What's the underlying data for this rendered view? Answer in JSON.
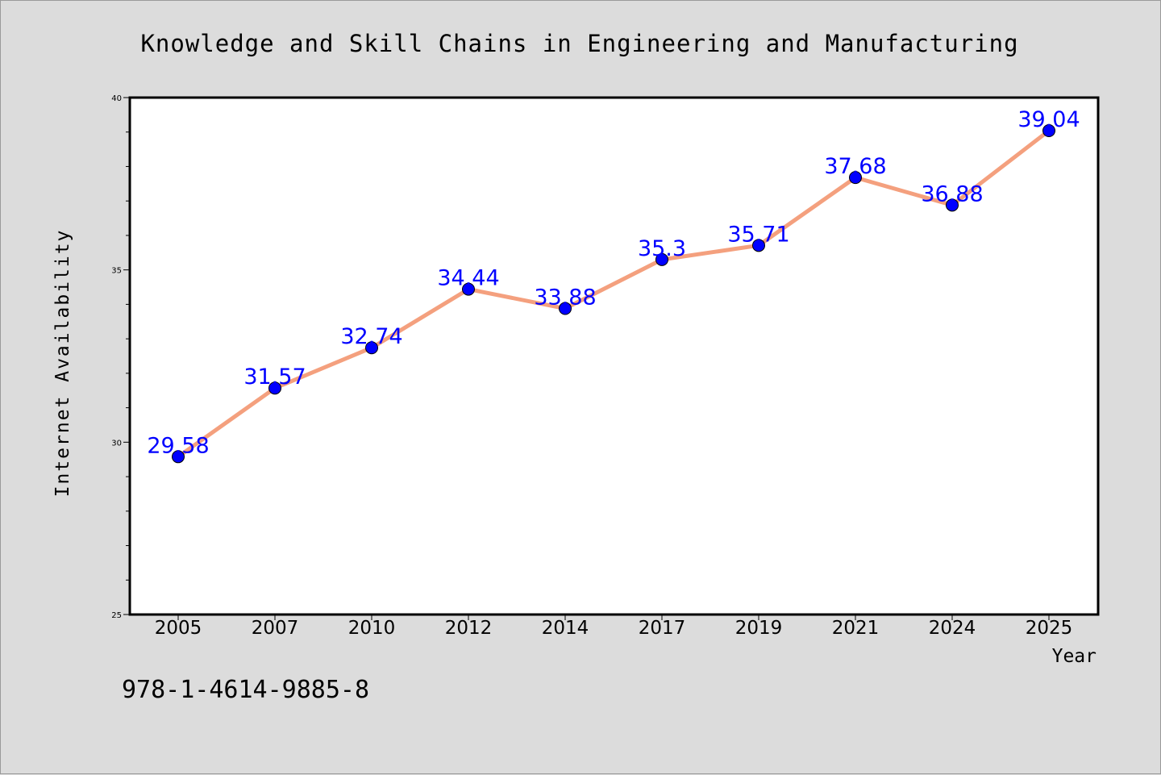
{
  "chart_data": {
    "type": "line",
    "title": "Knowledge and Skill Chains in Engineering and Manufacturing",
    "xlabel": "Year",
    "ylabel": "Internet Availability",
    "categories": [
      "2005",
      "2007",
      "2010",
      "2012",
      "2014",
      "2017",
      "2019",
      "2021",
      "2024",
      "2025"
    ],
    "series": [
      {
        "values": [
          29.58,
          31.57,
          32.74,
          34.44,
          33.88,
          35.3,
          35.71,
          37.68,
          36.88,
          39.04
        ],
        "labels": [
          "29.58",
          "31.57",
          "32.74",
          "34.44",
          "33.88",
          "35.3",
          "35.71",
          "37.68",
          "36.88",
          "39.04"
        ],
        "line_color": "#f4a07e",
        "marker_color": "#0000ff"
      }
    ],
    "ylim": [
      25,
      40
    ],
    "yticks": [
      "25",
      "30",
      "35",
      "40"
    ],
    "y_minor_step": 1,
    "grid": false,
    "legend": "none",
    "plot_background": "#ffffff",
    "figure_background": "#dcdcdc"
  },
  "footnote": "978-1-4614-9885-8"
}
